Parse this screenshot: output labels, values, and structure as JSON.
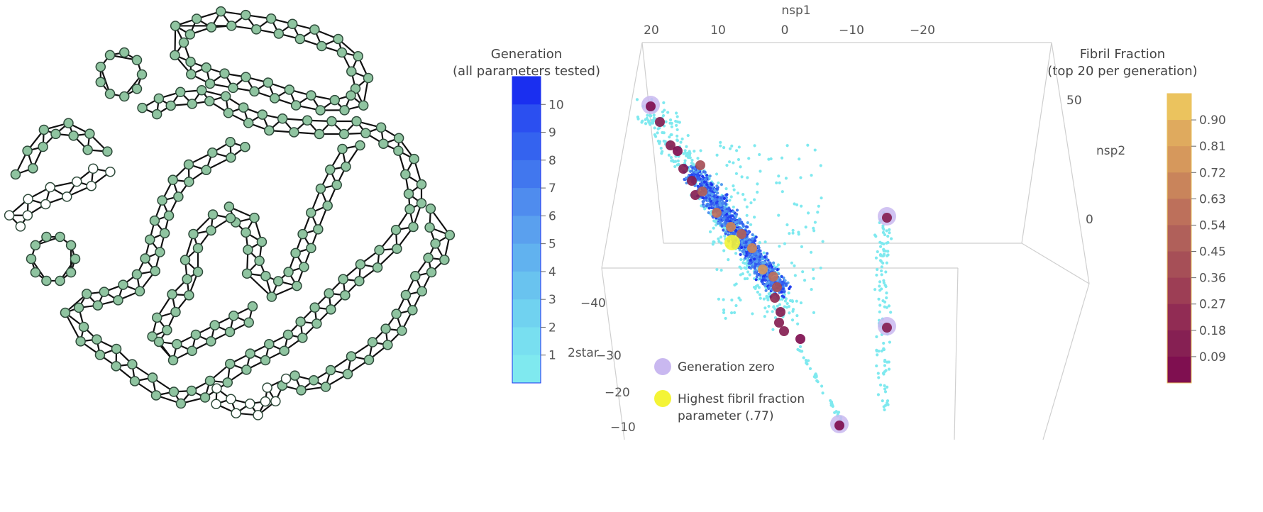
{
  "network": {
    "node_fill": "#8fc4a0",
    "node_stroke": "#2e4a3a",
    "highlight_fill": "#ffffff",
    "edge_color": "#111111"
  },
  "chart_data": [
    {
      "type": "colorbar",
      "title_line1": "Generation",
      "title_line2": "(all parameters tested)",
      "ticks": [
        "10",
        "9",
        "8",
        "7",
        "6",
        "5",
        "4",
        "3",
        "2",
        "1"
      ],
      "colors": [
        "#1a2ff0",
        "#2b4ff0",
        "#3463ef",
        "#4177ee",
        "#4f8cee",
        "#5aa0ee",
        "#61b2ef",
        "#69c3ef",
        "#70d2f0",
        "#78dff0",
        "#7fe9ef"
      ]
    },
    {
      "type": "scatter3d",
      "axes": {
        "x": {
          "label": "nsp1",
          "ticks": [
            "20",
            "10",
            "0",
            "−10",
            "−20"
          ]
        },
        "y": {
          "label": "nsp2",
          "ticks": [
            "50",
            "0"
          ]
        },
        "z": {
          "label": "2star",
          "ticks": [
            "−40",
            "−30",
            "−20",
            "−10"
          ]
        }
      },
      "legend": [
        {
          "label": "Generation zero",
          "color": "#c9b8f0"
        },
        {
          "label_line1": "Highest fibril fraction",
          "label_line2": "parameter (.77)",
          "color": "#f4f436"
        }
      ],
      "colors": {
        "all_points_low": "#7fe9ef",
        "all_points_high": "#1a2ff0",
        "gen_zero_halo": "#c9b8f0",
        "best": "#f4f436"
      }
    },
    {
      "type": "colorbar",
      "title_line1": "Fibril Fraction",
      "title_line2": "(top 20 per generation)",
      "ticks": [
        "0.90",
        "0.81",
        "0.72",
        "0.63",
        "0.54",
        "0.45",
        "0.36",
        "0.27",
        "0.18",
        "0.09"
      ],
      "colors": [
        "#ebc35e",
        "#dfaa5e",
        "#d6985c",
        "#c9845b",
        "#bd705b",
        "#b0605a",
        "#a64f57",
        "#9d3e55",
        "#912c54",
        "#862053",
        "#7f0f50"
      ]
    }
  ]
}
